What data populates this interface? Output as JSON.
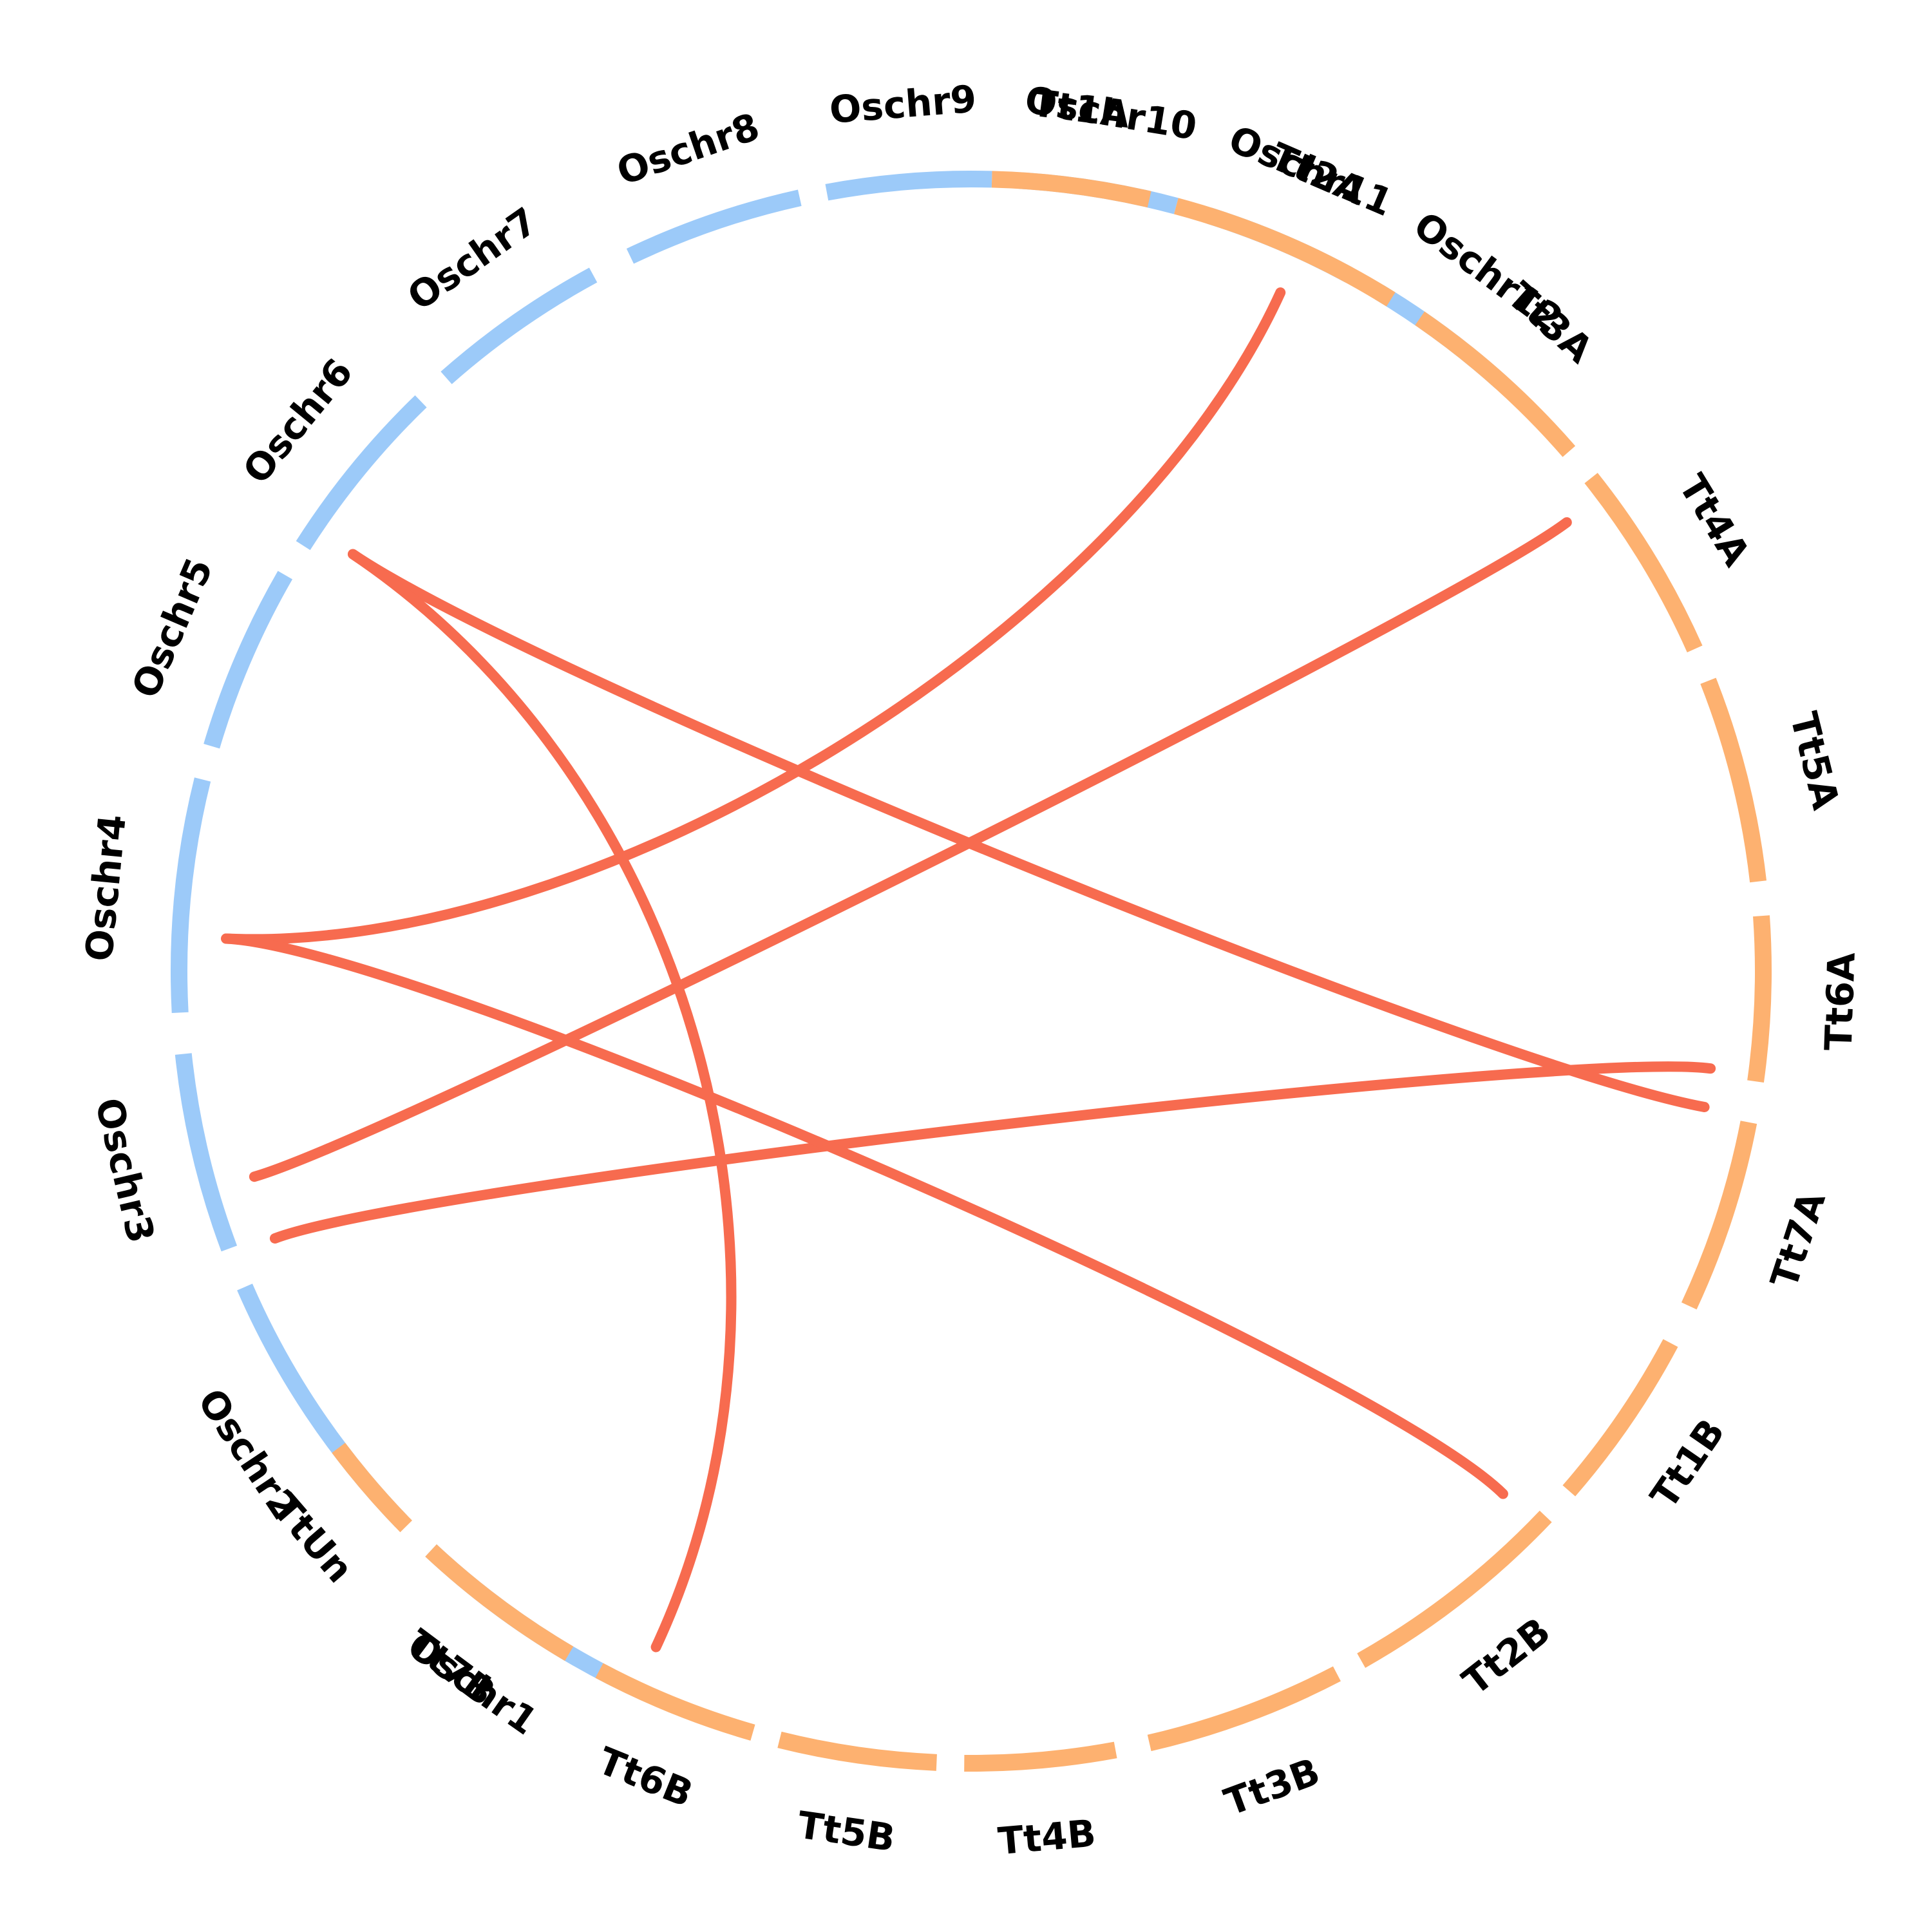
{
  "colors": {
    "oschr": "#9ccaf9",
    "tt": "#fdb170",
    "link": "#f76b4f"
  },
  "chromosomes": [
    {
      "id": "Oschr1",
      "label": "Oschr1",
      "group": "oschr",
      "start": 207.0,
      "end": 223.0
    },
    {
      "id": "Oschr2",
      "label": "Oschr2",
      "group": "oschr",
      "start": 226.0,
      "end": 246.5
    },
    {
      "id": "Oschr3",
      "label": "Oschr3",
      "group": "oschr",
      "start": 249.5,
      "end": 264.0
    },
    {
      "id": "Oschr4",
      "label": "Oschr4",
      "group": "oschr",
      "start": 267.0,
      "end": 284.0
    },
    {
      "id": "Oschr5",
      "label": "Oschr5",
      "group": "oschr",
      "start": 286.5,
      "end": 300.0
    },
    {
      "id": "Oschr6",
      "label": "Oschr6",
      "group": "oschr",
      "start": 302.5,
      "end": 316.0
    },
    {
      "id": "Oschr7",
      "label": "Oschr7",
      "group": "oschr",
      "start": 318.5,
      "end": 331.5
    },
    {
      "id": "Oschr8",
      "label": "Oschr8",
      "group": "oschr",
      "start": 334.5,
      "end": 347.5
    },
    {
      "id": "Oschr9",
      "label": "Oschr9",
      "group": "oschr",
      "start": 349.5,
      "end": 361.5
    },
    {
      "id": "Oschr10",
      "label": "Oschr10",
      "group": "oschr",
      "start": 363.5,
      "end": 375.0
    },
    {
      "id": "Oschr11",
      "label": "Oschr11",
      "group": "oschr",
      "start": 377.5,
      "end": 388.5
    },
    {
      "id": "Oschr12",
      "label": "Oschr12",
      "group": "oschr",
      "start": 391.0,
      "end": 402.0
    },
    {
      "id": "Tt1A",
      "label": "Tt1A",
      "group": "tt",
      "start": 1.5,
      "end": 13.0
    },
    {
      "id": "Tt2A",
      "label": "Tt2A",
      "group": "tt",
      "start": 15.0,
      "end": 32.0
    },
    {
      "id": "Tt3A",
      "label": "Tt3A",
      "group": "tt",
      "start": 34.5,
      "end": 49.0
    },
    {
      "id": "Tt4A",
      "label": "Tt4A",
      "group": "tt",
      "start": 51.5,
      "end": 66.0
    },
    {
      "id": "Tt5A",
      "label": "Tt5A",
      "group": "tt",
      "start": 68.5,
      "end": 83.5
    },
    {
      "id": "Tt6A",
      "label": "Tt6A",
      "group": "tt",
      "start": 86.0,
      "end": 98.0
    },
    {
      "id": "Tt7A",
      "label": "Tt7A",
      "group": "tt",
      "start": 101.0,
      "end": 115.0
    },
    {
      "id": "Tt1B",
      "label": "Tt1B",
      "group": "tt",
      "start": 118.0,
      "end": 131.0
    },
    {
      "id": "Tt2B",
      "label": "Tt2B",
      "group": "tt",
      "start": 133.5,
      "end": 150.5
    },
    {
      "id": "Tt3B",
      "label": "Tt3B",
      "group": "tt",
      "start": 152.5,
      "end": 167.0
    },
    {
      "id": "Tt4B",
      "label": "Tt4B",
      "group": "tt",
      "start": 169.5,
      "end": 180.5
    },
    {
      "id": "Tt5B",
      "label": "Tt5B",
      "group": "tt",
      "start": 182.5,
      "end": 194.0
    },
    {
      "id": "Tt6B",
      "label": "Tt6B",
      "group": "tt",
      "start": 196.0,
      "end": 208.0
    },
    {
      "id": "Tt7B",
      "label": "Tt7B",
      "group": "tt",
      "start": 210.5,
      "end": 223.0
    },
    {
      "id": "TtUn",
      "label": "TtUn",
      "group": "tt",
      "start": 225.5,
      "end": 233.0
    }
  ],
  "links": [
    {
      "from": "Oschr4",
      "from_pos": 272.5,
      "to": "Tt2A",
      "to_pos": 24.5,
      "tension": 0.5
    },
    {
      "from": "Oschr3",
      "from_pos": 254.0,
      "to": "Tt4A",
      "to_pos": 53.0,
      "tension": 0.2
    },
    {
      "from": "Oschr6",
      "from_pos": 304.0,
      "to": "Tt7A",
      "to_pos": 100.5,
      "tension": 0.3
    },
    {
      "from": "Oschr2",
      "from_pos": 249.0,
      "to": "Tt6A",
      "to_pos": 97.5,
      "tension": 0.2
    },
    {
      "from": "Oschr4",
      "from_pos": 272.5,
      "to": "Tt2B",
      "to_pos": 134.5,
      "tension": 0.25
    },
    {
      "from": "Oschr6",
      "from_pos": 304.0,
      "to": "Tt7B",
      "to_pos": 205.0,
      "tension": 0.55
    }
  ]
}
